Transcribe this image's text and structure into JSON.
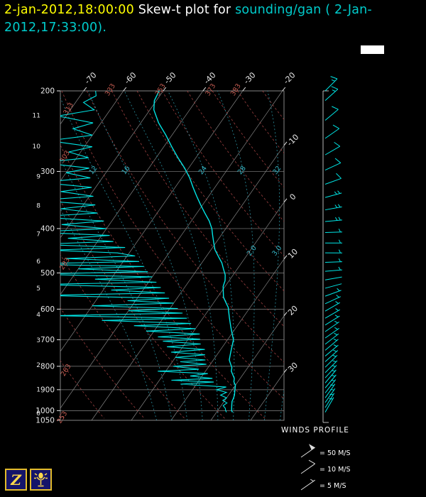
{
  "header": {
    "datetime": "2-jan-2012,18:00:00",
    "title_mid": " Skew-t plot for ",
    "station": "sounding/gan (",
    "subtitle": "2-Jan-2012,17:33:00)."
  },
  "winds_panel": {
    "title": "WINDS PROFILE",
    "legend": [
      {
        "label": "= 50 M/S",
        "speed": 50
      },
      {
        "label": "= 10 M/S",
        "speed": 10
      },
      {
        "label": "= 5 M/S",
        "speed": 5
      }
    ]
  },
  "icons": {
    "z_label": "Z"
  },
  "chart_data": {
    "type": "skewt",
    "p_range": [
      200,
      1050
    ],
    "pressure_ticks": [
      200,
      300,
      400,
      500,
      600,
      700,
      800,
      900,
      1000,
      1050
    ],
    "height_ticks_km": [
      0,
      1,
      2,
      3,
      4,
      5,
      6,
      7,
      8,
      9,
      10,
      11
    ],
    "temp_ticks_top": [
      -70,
      -60,
      -50,
      -40,
      -30,
      -20
    ],
    "temp_ticks_right": [
      -10,
      0,
      10,
      20,
      30
    ],
    "isotherms": {
      "min": -120,
      "max": 40,
      "step": 10
    },
    "dry_adiabats": {
      "min": 253,
      "max": 403,
      "step": 10,
      "labels": [
        253,
        263,
        283,
        303,
        313,
        333,
        353,
        373,
        383
      ]
    },
    "moist_adiabats": {
      "values_c": [
        4,
        8,
        12,
        16,
        20,
        24,
        28,
        32,
        36
      ],
      "labels": [
        12,
        16,
        24,
        28,
        32
      ],
      "aux_labels": [
        {
          "text": "2.0",
          "curve": 28,
          "p": 450
        },
        {
          "text": "3.0",
          "curve": 32,
          "p": 450
        }
      ]
    },
    "temperature_profile": [
      [
        1008,
        24
      ],
      [
        1000,
        23.5
      ],
      [
        985,
        23
      ],
      [
        970,
        22.5
      ],
      [
        955,
        22
      ],
      [
        940,
        21.8
      ],
      [
        925,
        21.5
      ],
      [
        910,
        21
      ],
      [
        895,
        20.5
      ],
      [
        880,
        20
      ],
      [
        865,
        19
      ],
      [
        850,
        18.5
      ],
      [
        835,
        17.5
      ],
      [
        820,
        16.5
      ],
      [
        805,
        16
      ],
      [
        790,
        15
      ],
      [
        775,
        14
      ],
      [
        760,
        13.5
      ],
      [
        745,
        13
      ],
      [
        730,
        12.5
      ],
      [
        715,
        12
      ],
      [
        700,
        11.5
      ],
      [
        685,
        10.5
      ],
      [
        670,
        9.5
      ],
      [
        655,
        8.5
      ],
      [
        640,
        7.5
      ],
      [
        625,
        6.5
      ],
      [
        610,
        5.5
      ],
      [
        595,
        4.5
      ],
      [
        580,
        3
      ],
      [
        565,
        1.5
      ],
      [
        550,
        0.5
      ],
      [
        535,
        -0.5
      ],
      [
        520,
        -1
      ],
      [
        505,
        -2
      ],
      [
        490,
        -3.5
      ],
      [
        475,
        -5
      ],
      [
        460,
        -7
      ],
      [
        445,
        -9
      ],
      [
        430,
        -10.5
      ],
      [
        415,
        -12
      ],
      [
        400,
        -13.5
      ],
      [
        385,
        -15.5
      ],
      [
        370,
        -18
      ],
      [
        355,
        -20.5
      ],
      [
        340,
        -23
      ],
      [
        325,
        -25.5
      ],
      [
        310,
        -28
      ],
      [
        295,
        -31
      ],
      [
        280,
        -34.5
      ],
      [
        265,
        -38
      ],
      [
        250,
        -41.5
      ],
      [
        235,
        -45.5
      ],
      [
        220,
        -49
      ],
      [
        210,
        -50.5
      ],
      [
        200,
        -51
      ]
    ],
    "dewpoint_profile": [
      [
        1008,
        22.5
      ],
      [
        1000,
        22
      ],
      [
        988,
        21.5
      ],
      [
        975,
        20.5
      ],
      [
        962,
        21
      ],
      [
        950,
        19.5
      ],
      [
        938,
        20
      ],
      [
        925,
        18
      ],
      [
        912,
        19
      ],
      [
        900,
        16
      ],
      [
        888,
        18
      ],
      [
        875,
        6
      ],
      [
        866,
        14
      ],
      [
        858,
        3
      ],
      [
        850,
        13
      ],
      [
        840,
        7
      ],
      [
        830,
        11
      ],
      [
        820,
        -2
      ],
      [
        812,
        8
      ],
      [
        800,
        1
      ],
      [
        792,
        9
      ],
      [
        782,
        2
      ],
      [
        775,
        8
      ],
      [
        765,
        0
      ],
      [
        755,
        7
      ],
      [
        745,
        -2
      ],
      [
        735,
        6
      ],
      [
        725,
        -4
      ],
      [
        715,
        4
      ],
      [
        705,
        -6
      ],
      [
        698,
        3
      ],
      [
        690,
        -8
      ],
      [
        680,
        2
      ],
      [
        670,
        -12
      ],
      [
        662,
        0
      ],
      [
        652,
        -16
      ],
      [
        645,
        -2
      ],
      [
        635,
        -25
      ],
      [
        628,
        -4
      ],
      [
        620,
        -38
      ],
      [
        612,
        -6
      ],
      [
        605,
        -20
      ],
      [
        598,
        -8
      ],
      [
        590,
        -30
      ],
      [
        582,
        -10
      ],
      [
        575,
        -22
      ],
      [
        568,
        -12
      ],
      [
        560,
        -45
      ],
      [
        553,
        -14
      ],
      [
        545,
        -28
      ],
      [
        538,
        -16
      ],
      [
        530,
        -48
      ],
      [
        524,
        -18
      ],
      [
        516,
        -34
      ],
      [
        510,
        -20
      ],
      [
        503,
        -52
      ],
      [
        497,
        -22
      ],
      [
        490,
        -40
      ],
      [
        484,
        -24
      ],
      [
        478,
        -55
      ],
      [
        472,
        -26
      ],
      [
        465,
        -45
      ],
      [
        459,
        -28
      ],
      [
        452,
        -33
      ],
      [
        446,
        -50
      ],
      [
        440,
        -32
      ],
      [
        433,
        -55
      ],
      [
        427,
        -36
      ],
      [
        420,
        -48
      ],
      [
        414,
        -38
      ],
      [
        407,
        -58
      ],
      [
        400,
        -40
      ],
      [
        392,
        -52
      ],
      [
        385,
        -42
      ],
      [
        377,
        -60
      ],
      [
        370,
        -45
      ],
      [
        362,
        -55
      ],
      [
        355,
        -47
      ],
      [
        347,
        -62
      ],
      [
        340,
        -49
      ],
      [
        332,
        -58
      ],
      [
        325,
        -51
      ],
      [
        317,
        -65
      ],
      [
        310,
        -53
      ],
      [
        302,
        -60
      ],
      [
        295,
        -55
      ],
      [
        287,
        -68
      ],
      [
        280,
        -57
      ],
      [
        272,
        -63
      ],
      [
        265,
        -58
      ],
      [
        257,
        -70
      ],
      [
        250,
        -60
      ],
      [
        242,
        -66
      ],
      [
        235,
        -62
      ],
      [
        227,
        -72
      ],
      [
        220,
        -64
      ],
      [
        212,
        -68
      ],
      [
        205,
        -66
      ],
      [
        200,
        -67
      ]
    ],
    "wind_profile": [
      [
        1008,
        30,
        5
      ],
      [
        985,
        32,
        5
      ],
      [
        960,
        35,
        5
      ],
      [
        938,
        35,
        6
      ],
      [
        915,
        38,
        6
      ],
      [
        892,
        40,
        6
      ],
      [
        870,
        40,
        7
      ],
      [
        848,
        42,
        7
      ],
      [
        826,
        45,
        7
      ],
      [
        804,
        45,
        6
      ],
      [
        782,
        48,
        6
      ],
      [
        760,
        50,
        6
      ],
      [
        738,
        50,
        5
      ],
      [
        716,
        52,
        5
      ],
      [
        694,
        55,
        5
      ],
      [
        672,
        55,
        4
      ],
      [
        650,
        58,
        4
      ],
      [
        628,
        60,
        4
      ],
      [
        606,
        60,
        3
      ],
      [
        584,
        65,
        3
      ],
      [
        562,
        70,
        3
      ],
      [
        540,
        75,
        2
      ],
      [
        518,
        80,
        2
      ],
      [
        496,
        85,
        3
      ],
      [
        474,
        88,
        4
      ],
      [
        452,
        90,
        5
      ],
      [
        430,
        90,
        6
      ],
      [
        408,
        88,
        7
      ],
      [
        386,
        85,
        8
      ],
      [
        364,
        80,
        8
      ],
      [
        342,
        75,
        9
      ],
      [
        320,
        70,
        10
      ],
      [
        298,
        65,
        10
      ],
      [
        276,
        60,
        11
      ],
      [
        254,
        55,
        12
      ],
      [
        232,
        50,
        12
      ],
      [
        210,
        48,
        13
      ],
      [
        200,
        45,
        13
      ]
    ],
    "colors": {
      "background": "#000000",
      "grid": "#858585",
      "axis_text": "#e8e8e8",
      "dry_adiabat": "#9c4040",
      "dry_adiabat_label": "#c25b50",
      "moist_adiabat": "#2a8f9f",
      "moist_adiabat_label": "#35b9c9",
      "trace": "#00e5e5",
      "title_yellow": "#ffff00",
      "title_cyan": "#00cccc",
      "icon_yellow": "#ffd94a",
      "icon_navy": "#14146a"
    }
  }
}
